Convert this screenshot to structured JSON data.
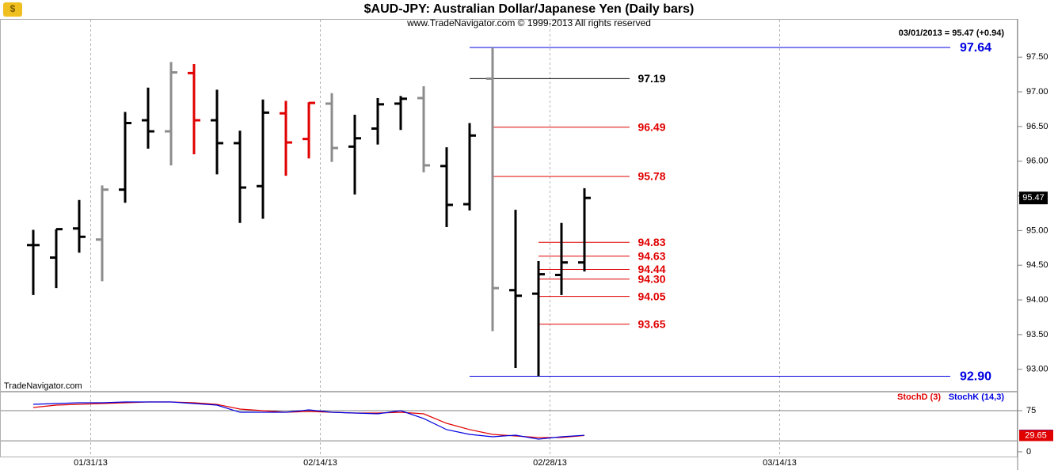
{
  "chart_data": [
    {
      "type": "ohlc",
      "title": "$AUD-JPY:  Australian Dollar/Japanese Yen  (Daily bars)",
      "subtitle": "www.TradeNavigator.com © 1999-2013 All rights reserved",
      "watermark": "TradeNavigator.com",
      "last_label": "03/01/2013 = 95.47 (+0.94)",
      "last_price": 95.47,
      "categories": [
        null,
        null,
        null,
        null,
        null,
        null,
        null,
        null,
        null,
        null,
        null,
        null,
        null,
        null,
        null,
        null,
        null,
        null,
        null,
        null,
        null,
        null,
        null,
        null,
        null
      ],
      "open": [
        94.79,
        94.61,
        95.03,
        94.87,
        95.59,
        96.59,
        96.43,
        97.27,
        96.59,
        96.26,
        95.64,
        96.69,
        96.32,
        96.83,
        96.21,
        96.47,
        96.83,
        96.91,
        95.93,
        95.38,
        97.19,
        94.14,
        94.09,
        94.36,
        94.54
      ],
      "high": [
        95.01,
        95.02,
        95.44,
        95.65,
        96.71,
        97.06,
        97.43,
        97.4,
        97.03,
        96.44,
        96.89,
        96.87,
        96.85,
        96.98,
        96.67,
        96.91,
        96.94,
        97.08,
        96.2,
        96.55,
        97.64,
        95.3,
        94.56,
        95.11,
        95.61
      ],
      "low": [
        94.07,
        94.17,
        94.68,
        94.27,
        95.4,
        96.18,
        95.94,
        96.1,
        95.81,
        95.11,
        95.17,
        95.79,
        96.04,
        95.99,
        95.52,
        96.24,
        96.45,
        95.84,
        95.05,
        95.29,
        93.55,
        93.02,
        92.9,
        94.07,
        94.41
      ],
      "close": [
        94.79,
        95.02,
        94.91,
        95.59,
        96.55,
        96.43,
        97.28,
        96.59,
        96.26,
        95.62,
        96.7,
        96.27,
        96.84,
        96.19,
        96.33,
        96.82,
        96.9,
        95.94,
        95.37,
        96.37,
        94.17,
        94.06,
        94.37,
        94.54,
        95.47
      ],
      "colors": [
        "#000000",
        "#000000",
        "#000000",
        "#8c8c8c",
        "#000000",
        "#000000",
        "#8c8c8c",
        "#e00000",
        "#000000",
        "#000000",
        "#000000",
        "#e00000",
        "#e00000",
        "#8c8c8c",
        "#000000",
        "#000000",
        "#000000",
        "#8c8c8c",
        "#000000",
        "#000000",
        "#8c8c8c",
        "#000000",
        "#000000",
        "#000000",
        "#000000"
      ],
      "levels": {
        "values": [
          97.64,
          97.19,
          96.49,
          95.78,
          94.83,
          94.63,
          94.44,
          94.3,
          94.05,
          93.65,
          92.9
        ],
        "value_labels": [
          "97.64",
          "97.19",
          "96.49",
          "95.78",
          "94.83",
          "94.63",
          "94.44",
          "94.30",
          "94.05",
          "93.65",
          "92.90"
        ],
        "colors": [
          "#0000e0",
          "#000000",
          "#e00000",
          "#e00000",
          "#e00000",
          "#e00000",
          "#e00000",
          "#e00000",
          "#e00000",
          "#e00000",
          "#0000e0"
        ]
      },
      "ylim": [
        92.7,
        98.05
      ],
      "yticks": [
        {
          "value": 93,
          "label": "93.00"
        },
        {
          "value": 93.5,
          "label": "93.50"
        },
        {
          "value": 94,
          "label": "94.00"
        },
        {
          "value": 94.5,
          "label": "94.50"
        },
        {
          "value": 95,
          "label": "95.00"
        },
        {
          "value": 95.5,
          "label": "95.50"
        },
        {
          "value": 96,
          "label": "96.00"
        },
        {
          "value": 96.5,
          "label": "96.50"
        },
        {
          "value": 97,
          "label": "97.00"
        },
        {
          "value": 97.5,
          "label": "97.50"
        }
      ],
      "xticks": [
        {
          "value": 2.5,
          "label": "01/31/13"
        },
        {
          "value": 12.5,
          "label": "02/14/13"
        },
        {
          "value": 22.5,
          "label": "02/28/13"
        },
        {
          "value": 32.5,
          "label": "03/14/13"
        }
      ]
    },
    {
      "type": "line",
      "series": [
        {
          "name": "StochD (3)",
          "color": "#e00000",
          "values": [
            80.8,
            85.1,
            86.5,
            88.0,
            89.4,
            90.9,
            90.9,
            89.4,
            86.5,
            77.9,
            75.0,
            72.1,
            73.6,
            72.1,
            70.7,
            70.7,
            72.1,
            69.2,
            51.9,
            40.4,
            31.7,
            28.8,
            26.0,
            26.0,
            29.65
          ]
        },
        {
          "name": "StochK (14,3)",
          "color": "#0000e0",
          "values": [
            86.5,
            88.0,
            89.4,
            89.4,
            90.9,
            90.9,
            90.9,
            88.0,
            85.1,
            72.1,
            72.1,
            72.1,
            76.4,
            72.1,
            70.7,
            69.2,
            75.0,
            60.6,
            40.4,
            31.7,
            27.4,
            30.3,
            23.1,
            27.4,
            30.17
          ]
        }
      ],
      "ylim": [
        -8.7,
        108.2
      ],
      "yticks": [
        0,
        75
      ],
      "ref_lines": [
        75,
        20
      ]
    }
  ]
}
